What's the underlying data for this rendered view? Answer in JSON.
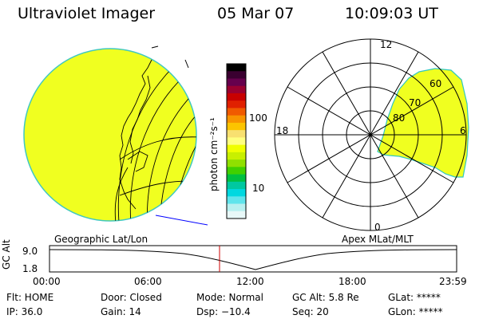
{
  "header": {
    "instrument": "Ultraviolet Imager",
    "date": "05 Mar 07",
    "time": "10:09:03 UT"
  },
  "colorbar": {
    "unit_label": "photon cm⁻²s⁻¹",
    "ticks": [
      "100",
      "10"
    ],
    "colors": [
      "#000000",
      "#3a0030",
      "#66004d",
      "#9a0030",
      "#c80000",
      "#e02000",
      "#f05a00",
      "#f89400",
      "#fcc400",
      "#f8e070",
      "#ffff80",
      "#f0ff00",
      "#c8f000",
      "#90e000",
      "#40d000",
      "#00c040",
      "#00c8a0",
      "#00d8e0",
      "#60e4ec",
      "#b8f0f0",
      "#e8f8f8"
    ]
  },
  "maps": {
    "left_label": "Geographic Lat/Lon",
    "right_label": "Apex MLat/MLT",
    "polar_mlt_labels": {
      "top": "12",
      "left": "18",
      "right": "6",
      "bottom": "0"
    },
    "polar_lat_labels": [
      "60",
      "70",
      "80"
    ],
    "fill_color": "#f0ff20"
  },
  "altitude_plot": {
    "ylabel": "GC Alt",
    "yticks": [
      "9.0",
      "1.8"
    ],
    "xticks": [
      "00:00",
      "06:00",
      "12:00",
      "18:00",
      "23:59"
    ],
    "current_time_color": "#cc0000"
  },
  "footer": {
    "col1": [
      "Flt: HOME",
      "IP: 36.0"
    ],
    "col2": [
      "Door: Closed",
      "Gain: 14"
    ],
    "col3": [
      "Mode: Normal",
      "Dsp:  −10.4"
    ],
    "col4": [
      "GC Alt: 5.8 Re",
      "Seq: 20"
    ],
    "col5": [
      "GLat: *****",
      "GLon: *****"
    ]
  }
}
